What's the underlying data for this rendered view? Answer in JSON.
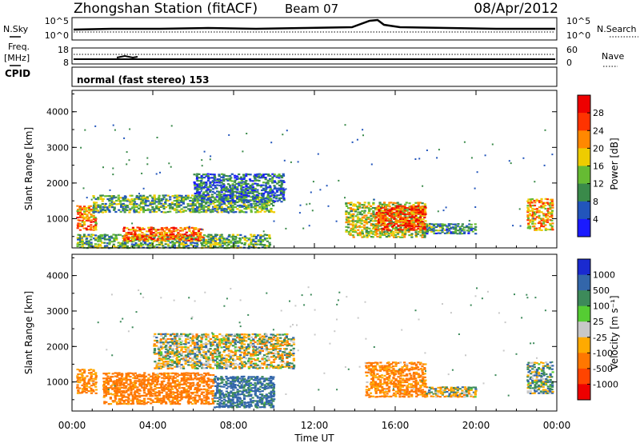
{
  "header": {
    "station": "Zhongshan Station (fitACF)",
    "beam": "Beam 07",
    "date": "08/Apr/2012"
  },
  "noise_panel": {
    "left_label": "N.Sky",
    "right_label": "N.Search",
    "left_ticks": [
      "10^5",
      "10^0"
    ],
    "right_ticks": [
      "10^5",
      "10^0"
    ]
  },
  "freq_panel": {
    "left_label_1": "Freq.",
    "left_label_2": "[MHz]",
    "right_label": "Nave",
    "left_ticks": [
      "18",
      "8"
    ],
    "right_ticks": [
      "60",
      "0"
    ]
  },
  "cpid": {
    "label": "CPID",
    "mode": "normal (fast stereo) 153"
  },
  "power_panel": {
    "ylabel": "Slant Range [km]",
    "yticks": [
      "1000",
      "2000",
      "3000",
      "4000"
    ],
    "colorbar_label": "Power [dB]",
    "colorbar_ticks": [
      "4",
      "8",
      "12",
      "16",
      "20",
      "24",
      "28"
    ],
    "colors": [
      "#1a1aff",
      "#2255bb",
      "#3a8a4a",
      "#66bb33",
      "#eecc00",
      "#ff8800",
      "#ff3300",
      "#ee0000"
    ]
  },
  "velocity_panel": {
    "ylabel": "Slant Range [km]",
    "yticks": [
      "1000",
      "2000",
      "3000",
      "4000"
    ],
    "colorbar_label": "Velocity [m s⁻¹]",
    "colorbar_ticks": [
      "1000",
      "500",
      "100",
      "25",
      "-25",
      "-100",
      "-500",
      "-1000"
    ],
    "colors": [
      "#1a2ad0",
      "#3366aa",
      "#3d8a5a",
      "#55cc33",
      "#c8c8c8",
      "#ffaa00",
      "#ff7700",
      "#ff4400",
      "#ee0000"
    ]
  },
  "xaxis": {
    "label": "Time UT",
    "ticks": [
      "00:00",
      "04:00",
      "08:00",
      "12:00",
      "16:00",
      "20:00",
      "00:00"
    ]
  },
  "chart_data": [
    {
      "type": "heatmap",
      "title": "Power [dB]",
      "xlabel": "Time UT",
      "ylabel": "Slant Range [km]",
      "xlim": [
        0,
        24
      ],
      "ylim": [
        180,
        4600
      ],
      "zlim": [
        0,
        32
      ],
      "regions": [
        {
          "t": [
            0.2,
            9.8
          ],
          "r": [
            200,
            600
          ],
          "z": 12
        },
        {
          "t": [
            0.2,
            1.2
          ],
          "r": [
            700,
            1400
          ],
          "z": 22
        },
        {
          "t": [
            1.0,
            10.0
          ],
          "r": [
            1200,
            1700
          ],
          "z": 12
        },
        {
          "t": [
            2.5,
            6.5
          ],
          "r": [
            400,
            800
          ],
          "z": 24
        },
        {
          "t": [
            6.0,
            10.5
          ],
          "r": [
            1500,
            2300
          ],
          "z": 8
        },
        {
          "t": [
            13.5,
            17.5
          ],
          "r": [
            500,
            1500
          ],
          "z": 16
        },
        {
          "t": [
            15.0,
            17.5
          ],
          "r": [
            700,
            1400
          ],
          "z": 26
        },
        {
          "t": [
            17.5,
            20.0
          ],
          "r": [
            600,
            900
          ],
          "z": 10
        },
        {
          "t": [
            22.5,
            23.8
          ],
          "r": [
            700,
            1600
          ],
          "z": 20
        }
      ]
    },
    {
      "type": "heatmap",
      "title": "Velocity [m s⁻¹]",
      "xlabel": "Time UT",
      "ylabel": "Slant Range [km]",
      "xlim": [
        0,
        24
      ],
      "ylim": [
        180,
        4600
      ],
      "zlim": [
        -1000,
        1000
      ],
      "regions": [
        {
          "t": [
            0.2,
            1.2
          ],
          "r": [
            700,
            1400
          ],
          "v": -150
        },
        {
          "t": [
            1.5,
            7.0
          ],
          "r": [
            400,
            1300
          ],
          "v": -200
        },
        {
          "t": [
            4.0,
            11.0
          ],
          "r": [
            1400,
            2400
          ],
          "v": 0
        },
        {
          "t": [
            7.0,
            10.0
          ],
          "r": [
            300,
            1200
          ],
          "v": 150
        },
        {
          "t": [
            14.5,
            17.5
          ],
          "r": [
            600,
            1600
          ],
          "v": -150
        },
        {
          "t": [
            17.5,
            20.0
          ],
          "r": [
            600,
            900
          ],
          "v": 0
        },
        {
          "t": [
            22.5,
            23.8
          ],
          "r": [
            700,
            1600
          ],
          "v": 50
        }
      ]
    }
  ]
}
